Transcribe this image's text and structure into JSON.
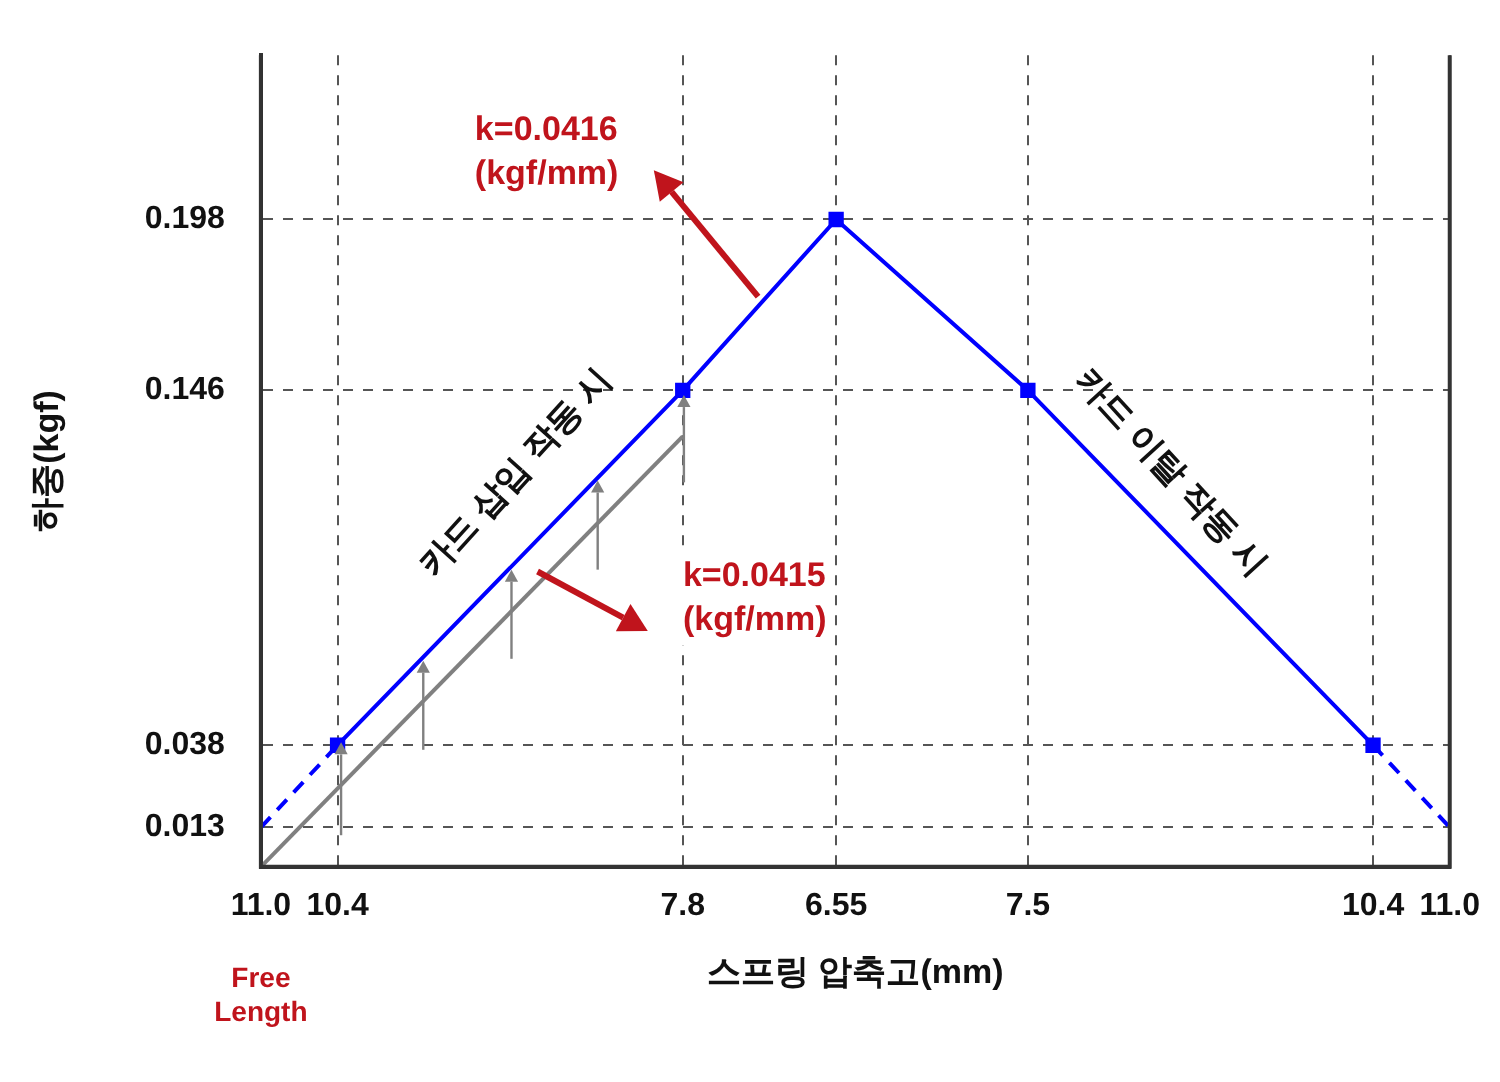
{
  "chart_data": {
    "type": "line",
    "xlabel": "스프링 압축고(mm)",
    "ylabel": "하중(kgf)",
    "categories": [
      "11.0",
      null,
      "10.4",
      null,
      null,
      null,
      null,
      null,
      null,
      null,
      null,
      "7.8",
      null,
      null,
      null,
      "6.55",
      null,
      null,
      null,
      null,
      "7.5",
      null,
      null,
      null,
      null,
      null,
      null,
      null,
      null,
      "10.4",
      null,
      "11.0"
    ],
    "ylim": [
      0.001,
      0.248
    ],
    "yticks": [
      0.013,
      0.038,
      0.146,
      0.198
    ],
    "grid": true,
    "legend": false,
    "series": [
      {
        "color": "#0000ff",
        "values": [
          null,
          null,
          0.038,
          null,
          null,
          null,
          null,
          null,
          null,
          null,
          null,
          0.146,
          null,
          null,
          null,
          0.198,
          null,
          null,
          null,
          null,
          0.146,
          null,
          null,
          null,
          null,
          null,
          null,
          null,
          null,
          0.038,
          null,
          null
        ],
        "marker": "square",
        "line_style": "solid"
      },
      {
        "color": "#0000ff",
        "values": [
          0.013,
          null,
          0.038,
          null,
          null,
          null,
          null,
          null,
          null,
          null,
          null,
          null,
          null,
          null,
          null,
          null,
          null,
          null,
          null,
          null,
          null,
          null,
          null,
          null,
          null,
          null,
          null,
          null,
          null,
          null,
          null,
          null
        ],
        "line_style": "dashed"
      },
      {
        "color": "#0000ff",
        "values": [
          null,
          null,
          null,
          null,
          null,
          null,
          null,
          null,
          null,
          null,
          null,
          null,
          null,
          null,
          null,
          null,
          null,
          null,
          null,
          null,
          null,
          null,
          null,
          null,
          null,
          null,
          null,
          null,
          null,
          0.038,
          null,
          0.013
        ],
        "line_style": "dashed"
      },
      {
        "color": "#808080",
        "values": [
          0.001,
          null,
          null,
          null,
          null,
          null,
          null,
          null,
          null,
          null,
          null,
          0.132,
          null,
          null,
          null,
          null,
          null,
          null,
          null,
          null,
          null,
          null,
          null,
          null,
          null,
          null,
          null,
          null,
          null,
          null,
          null,
          null
        ],
        "marker": "none",
        "line_style": "solid"
      }
    ],
    "annotations": [
      "k=0.0416\n(kgf/mm)",
      "k=0.0415\n(kgf/mm)",
      "카드 삽입 작동 시",
      "카드 이탈 작동 시",
      "Free\nLength"
    ]
  }
}
